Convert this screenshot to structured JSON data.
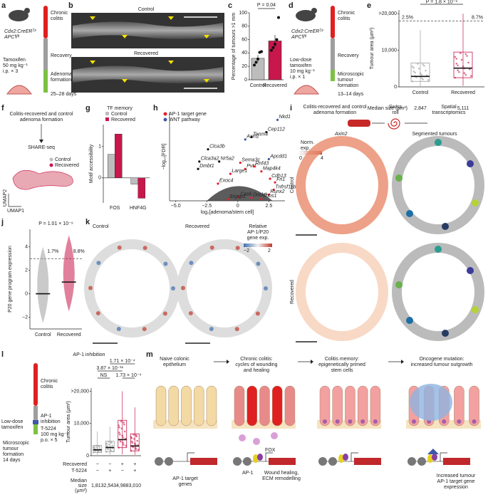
{
  "panels": {
    "a": {
      "label": "a",
      "mouse": [
        "Cdx2:CreERᵀ²",
        "APCᶠˡ/ᶠˡ"
      ],
      "stages": [
        [
          "Chronic",
          "colitis"
        ],
        [
          "Recovery"
        ],
        [
          "Adenoma",
          "formation"
        ]
      ],
      "treatment": [
        "Tamoxifen",
        "50 mg kg⁻¹",
        "i.p. × 3"
      ],
      "duration": "25–28 days"
    },
    "b": {
      "label": "b",
      "images": [
        "Control",
        "Recovered"
      ]
    },
    "d": {
      "label": "d",
      "mouse": [
        "Cdx2:CreERᵀ²",
        "APCᶠˡ/ᶠˡ"
      ],
      "stages": [
        [
          "Chronic",
          "colitis"
        ],
        [
          "Recovery"
        ],
        [
          "Microscopic",
          "tumour",
          "formation"
        ]
      ],
      "treatment": [
        "Low-dose",
        "tamoxifen",
        "10 mg kg⁻¹",
        "i.p. × 1"
      ],
      "duration": "13–14 days"
    },
    "f": {
      "label": "f",
      "steps": [
        "Colitis-recovered and control",
        "adenoma formation"
      ],
      "method": "SHARE-seq",
      "legend": [
        "Control",
        "Recovered"
      ],
      "legend_colors": [
        "#bdbdbd",
        "#c8174b"
      ],
      "axes": [
        "UMAP2",
        "UMAP1"
      ]
    },
    "i": {
      "label": "i",
      "header": [
        "Colitis-recovered and control",
        "adenoma formation"
      ],
      "roll": [
        "Swiss",
        "roll"
      ],
      "method": [
        "Spatial",
        "transcriptomics"
      ],
      "gene": "Axin2",
      "segmented": "Segmented tumours",
      "colorbar": [
        "Norm.",
        "exp."
      ],
      "colorbar_ticks": [
        0,
        4
      ],
      "rows": [
        "Control",
        "Recovered"
      ]
    },
    "k": {
      "label": "k",
      "conditions": [
        "Control",
        "Recovered"
      ],
      "colorbar": [
        "Relative",
        "AP-1/P20",
        "gene exp."
      ],
      "colorbar_ticks": [
        {
          "value": -2,
          "label": "−2"
        },
        2
      ]
    },
    "l": {
      "stages": [
        [
          "Chronic",
          "colitis"
        ],
        [
          "AP-1",
          "inhibition"
        ]
      ],
      "treatment": [
        "Low-dose",
        "tamoxifen"
      ],
      "drug": [
        "T-5224",
        "100 mg kg⁻¹",
        "p.o. × 5"
      ],
      "outcome": [
        "Microscopic",
        "tumour",
        "formation",
        "14 days"
      ]
    },
    "m": {
      "label": "m",
      "headers": [
        [
          "Naive colonic",
          "epithelium"
        ],
        [
          "Chronic colitis:",
          "cycles of wounding",
          "and healing"
        ],
        [
          "Colitis memory:",
          "epigenetically primed",
          "stem cells"
        ],
        [
          "Oncogene mutation:",
          "increased tumour outgrowth"
        ]
      ],
      "genes": [
        "AP-1 target",
        "genes"
      ],
      "tf": [
        "FOX",
        "AP-1"
      ],
      "outcome_memory": [
        "Wound healing,",
        "ECM remodelling"
      ],
      "outcome_tumour": [
        "Increased tumour",
        "AP-1 target gene",
        "expression"
      ]
    }
  },
  "chart_data": [
    {
      "type": "bar",
      "label": "c",
      "ylabel": "Percentage of tumours >1 mm",
      "categories": [
        "Control",
        "Recovered"
      ],
      "values": [
        32,
        58
      ],
      "errors": [
        5,
        9
      ],
      "colors": [
        "#bdbdbd",
        "#c8174b"
      ],
      "points": [
        [
          22,
          26,
          31,
          41,
          42
        ],
        [
          44,
          48,
          53,
          60,
          93
        ]
      ],
      "ylim": [
        0,
        100
      ],
      "yticks": [
        0,
        20,
        40,
        60,
        80,
        100
      ],
      "annotation": "P = 0.04"
    },
    {
      "type": "box",
      "label": "e",
      "ylabel": "Tumour area (µm²)",
      "categories": [
        "Control",
        "Recovered"
      ],
      "colors": [
        "#9e9e9e",
        "#c8174b"
      ],
      "boxes": [
        {
          "low": 200,
          "q1": 1500,
          "median": 2847,
          "q3": 6500,
          "high": 15500
        },
        {
          "low": 300,
          "q1": 2500,
          "median": 5111,
          "q3": 9500,
          "high": 20000
        }
      ],
      "median_title": "Median size (µm²)",
      "median_labels": [
        "2,847",
        "5,111"
      ],
      "threshold": 18000,
      "percent_labels": [
        "2.5%",
        "8.7%"
      ],
      "annotation": "P = 1.8 × 10⁻⁶",
      "ylim": [
        0,
        21000
      ],
      "yticks": [
        0,
        {
          "value": 10000,
          "label": "10,000"
        },
        {
          "value": 20000,
          "label": ">20,000"
        }
      ]
    },
    {
      "type": "bar",
      "label": "g",
      "title": "TF memory",
      "ylabel": "Motif accessibility",
      "categories": [
        "FOS",
        "HNF4G"
      ],
      "series": [
        {
          "name": "Control",
          "color": "#bdbdbd",
          "values": [
            0.75,
            -0.2
          ]
        },
        {
          "name": "Recovered",
          "color": "#c8174b",
          "values": [
            1.4,
            -0.65
          ]
        }
      ],
      "ylim": [
        -0.8,
        1.7
      ],
      "yticks": [
        0,
        1
      ]
    },
    {
      "type": "scatter",
      "label": "h",
      "xlabel": "log₂[adenoma/stem cell]",
      "ylabel": "−log₁₀[FDR]",
      "xlim": [
        -5.5,
        3.8
      ],
      "ylim": [
        0,
        36
      ],
      "xticks": [
        {
          "value": -5,
          "label": "−5.0"
        },
        {
          "value": -2.5,
          "label": "−2.5"
        },
        0,
        2.5
      ],
      "series": [
        {
          "name": "AP-1 target gene",
          "color": "#e8202a",
          "labels": [
            "Sema3c",
            "Pvt1",
            "Rnf43",
            "Map4k4",
            "Large1",
            "Exoc4",
            "Cdh13",
            "Fn1",
            "Tnfrsf11b",
            "Runx2",
            "Thbs1",
            "Dock9",
            "Cask",
            "Srgap3"
          ],
          "x": [
            0.2,
            0.6,
            1.3,
            1.9,
            -0.6,
            -1.6,
            2.6,
            3.0,
            2.9,
            2.5,
            1.9,
            1.1,
            0.1,
            -0.8
          ],
          "y": [
            15.5,
            13,
            14,
            12,
            11,
            7,
            9,
            7.5,
            4.5,
            2.5,
            0.8,
            1.2,
            1.5,
            0.6
          ]
        },
        {
          "name": "WNT pathway",
          "color": "#3e58a8",
          "labels": [
            "Nkd1",
            "Axin2",
            "Apcdd1"
          ],
          "x": [
            3.2,
            0.6,
            2.5
          ],
          "y": [
            33,
            25,
            17
          ]
        }
      ],
      "other_genes": {
        "color": "#111111",
        "labels": [
          "Cep112",
          "Tenm4",
          "Clca3b",
          "Nr5a2",
          "Clca3a2",
          "Dmbt1"
        ],
        "x": [
          2.3,
          1.1,
          -2.4,
          -1.5,
          -3.1,
          -3.2
        ],
        "y": [
          28,
          26,
          21,
          16,
          16,
          13
        ]
      }
    },
    {
      "type": "strip",
      "label": "j",
      "ylabel": "P20 gene program expression",
      "categories": [
        "Control",
        "Recovered"
      ],
      "colors": [
        "#9e9e9e",
        "#c8174b"
      ],
      "medians": [
        0,
        1
      ],
      "ranges": [
        [
          -2.5,
          4
        ],
        [
          -1.5,
          5
        ]
      ],
      "threshold": 3,
      "percent_labels": [
        "1.7%",
        "8.8%"
      ],
      "annotation": "P = 1.01 × 10⁻⁹",
      "ylim": [
        -3,
        5.5
      ],
      "yticks": [
        {
          "value": -2,
          "label": "−2"
        },
        0,
        2,
        4
      ]
    },
    {
      "type": "box",
      "label": "l",
      "title": "AP-1 inhibition",
      "ylabel": "Tumour area (µm²)",
      "colors": [
        "#9e9e9e",
        "#9e9e9e",
        "#c8174b",
        "#c8174b"
      ],
      "boxes": [
        {
          "low": 300,
          "q1": 1000,
          "median": 1813,
          "q3": 3200,
          "high": 7500
        },
        {
          "low": 300,
          "q1": 1200,
          "median": 2543,
          "q3": 4500,
          "high": 9000
        },
        {
          "low": 400,
          "q1": 2500,
          "median": 4988,
          "q3": 11000,
          "high": 20000
        },
        {
          "low": 300,
          "q1": 1500,
          "median": 3010,
          "q3": 6800,
          "high": 15000
        }
      ],
      "row_names": [
        "Recovered",
        "T-5224"
      ],
      "rows": [
        [
          "−",
          "−",
          "+",
          "+"
        ],
        [
          "−",
          "+",
          "−",
          "+"
        ]
      ],
      "median_title": [
        "Median",
        "size",
        "(µm²)"
      ],
      "median_labels": [
        "1,813",
        "2,543",
        "4,988",
        "3,010"
      ],
      "p_values": [
        "1.71 × 10⁻⁴",
        "3.87 × 10⁻¹¹",
        "NS",
        "1.73 × 10⁻⁴"
      ],
      "ylim": [
        0,
        21000
      ],
      "yticks": [
        0,
        {
          "value": 10000,
          "label": "10,000"
        },
        {
          "value": 20000,
          "label": ">20,000"
        }
      ]
    }
  ]
}
